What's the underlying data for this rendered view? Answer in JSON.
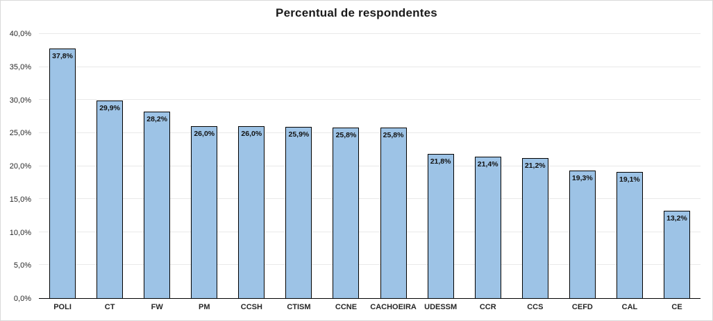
{
  "chart_data": {
    "type": "bar",
    "title": "Percentual de respondentes",
    "categories": [
      "POLI",
      "CT",
      "FW",
      "PM",
      "CCSH",
      "CTISM",
      "CCNE",
      "CACHOEIRA",
      "UDESSM",
      "CCR",
      "CCS",
      "CEFD",
      "CAL",
      "CE"
    ],
    "values": [
      37.8,
      29.9,
      28.2,
      26.0,
      26.0,
      25.9,
      25.8,
      25.8,
      21.8,
      21.4,
      21.2,
      19.3,
      19.1,
      13.2
    ],
    "value_labels": [
      "37,8%",
      "29,9%",
      "28,2%",
      "26,0%",
      "26,0%",
      "25,9%",
      "25,8%",
      "25,8%",
      "21,8%",
      "21,4%",
      "21,2%",
      "19,3%",
      "19,1%",
      "13,2%"
    ],
    "xlabel": "",
    "ylabel": "",
    "ylim": [
      0,
      40
    ],
    "ytick_step": 5,
    "ytick_labels": [
      "0,0%",
      "5,0%",
      "10,0%",
      "15,0%",
      "20,0%",
      "25,0%",
      "30,0%",
      "35,0%",
      "40,0%"
    ],
    "grid": true,
    "legend_position": "none",
    "colors": {
      "bar_fill": "#9DC3E6",
      "bar_border": "#000000",
      "gridline": "#E9E9E9",
      "axis_line": "#000000",
      "text": "#262626",
      "chart_border": "#D9D9D9",
      "background": "#FFFFFF"
    }
  }
}
